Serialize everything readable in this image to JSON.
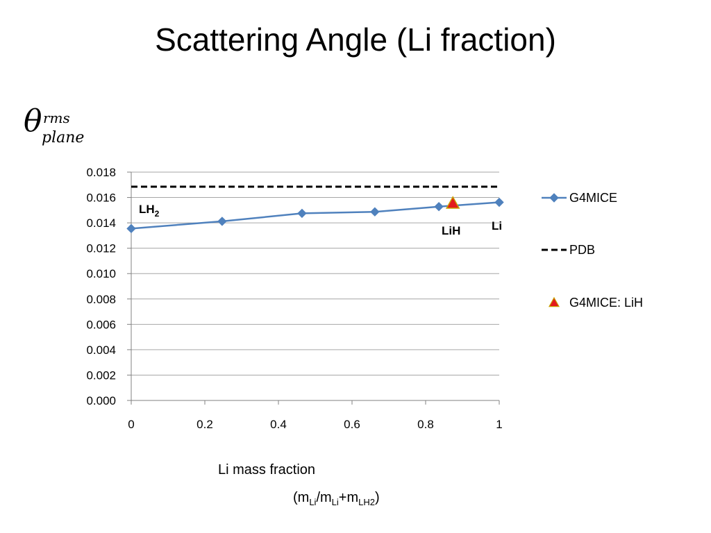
{
  "slide": {
    "title": "Scattering Angle (Li fraction)"
  },
  "ylabel": {
    "symbol": "θ",
    "superscript": "rms",
    "subscript": "plane"
  },
  "xlabel": {
    "line1": "Li mass fraction",
    "line2": {
      "m1": "(m",
      "s1": "Li",
      "m2": "/m",
      "s2": "Li",
      "m3": "+m",
      "s3": "LH2",
      "m4": ")"
    }
  },
  "chart_data": {
    "type": "line",
    "xlim": [
      0,
      1
    ],
    "ylim": [
      0,
      0.018
    ],
    "x_ticks": [
      0,
      0.2,
      0.4,
      0.6,
      0.8,
      1
    ],
    "x_tick_labels": [
      "0",
      "0.2",
      "0.4",
      "0.6",
      "0.8",
      "1"
    ],
    "y_ticks": [
      0,
      0.002,
      0.004,
      0.006,
      0.008,
      0.01,
      0.012,
      0.014,
      0.016,
      0.018
    ],
    "y_tick_labels": [
      "0.000",
      "0.002",
      "0.004",
      "0.006",
      "0.008",
      "0.010",
      "0.012",
      "0.014",
      "0.016",
      "0.018"
    ],
    "grid": true,
    "legend_position": "right",
    "series": [
      {
        "name": "G4MICE",
        "style": "line-diamond",
        "color": "#4f81bd",
        "x": [
          0,
          0.247,
          0.464,
          0.662,
          0.836,
          1.0
        ],
        "y": [
          0.01355,
          0.01412,
          0.01475,
          0.01487,
          0.01528,
          0.01562
        ]
      },
      {
        "name": "PDB",
        "style": "dashed",
        "color": "#000000",
        "x": [
          0,
          1
        ],
        "y": [
          0.01685,
          0.01685
        ]
      },
      {
        "name": "G4MICE: LiH",
        "style": "triangle",
        "color": "#e31a1c",
        "x": [
          0.874
        ],
        "y": [
          0.01555
        ]
      }
    ],
    "annotations": [
      {
        "text": "LH",
        "sub": "2"
      },
      {
        "text": "LiH"
      },
      {
        "text": "Li"
      }
    ]
  }
}
